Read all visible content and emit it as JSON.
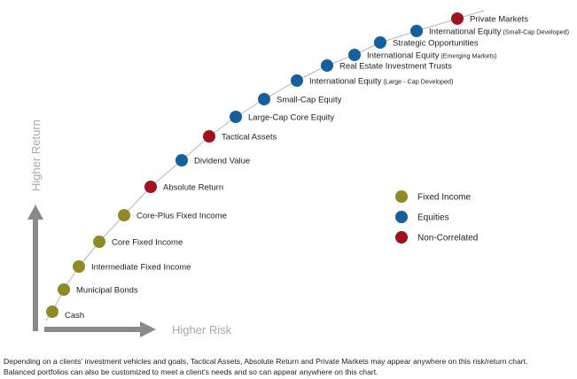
{
  "chart_data": {
    "type": "scatter",
    "xlabel": "Higher Risk",
    "ylabel": "Higher Return",
    "grid": false,
    "legend_placement": "right",
    "categories": [
      {
        "key": "fixed",
        "name": "Fixed Income",
        "color": "#8f8a26"
      },
      {
        "key": "equity",
        "name": "Equities",
        "color": "#14609c"
      },
      {
        "key": "noncorr",
        "name": "Non-Correlated",
        "color": "#a0121e"
      }
    ],
    "points": [
      {
        "label": "Cash",
        "sub": "",
        "category": "fixed",
        "risk": 1,
        "ret": 1
      },
      {
        "label": "Municipal Bonds",
        "sub": "",
        "category": "fixed",
        "risk": 2,
        "ret": 2
      },
      {
        "label": "Intermediate Fixed Income",
        "sub": "",
        "category": "fixed",
        "risk": 3,
        "ret": 3
      },
      {
        "label": "Core Fixed Income",
        "sub": "",
        "category": "fixed",
        "risk": 4,
        "ret": 4
      },
      {
        "label": "Core-Plus Fixed Income",
        "sub": "",
        "category": "fixed",
        "risk": 5,
        "ret": 5
      },
      {
        "label": "Absolute Return",
        "sub": "",
        "category": "noncorr",
        "risk": 6,
        "ret": 6
      },
      {
        "label": "Dividend Value",
        "sub": "",
        "category": "equity",
        "risk": 7,
        "ret": 7
      },
      {
        "label": "Tactical Assets",
        "sub": "",
        "category": "noncorr",
        "risk": 8,
        "ret": 8
      },
      {
        "label": "Large-Cap Core Equity",
        "sub": "",
        "category": "equity",
        "risk": 9,
        "ret": 9
      },
      {
        "label": "Small-Cap Equity",
        "sub": "",
        "category": "equity",
        "risk": 10,
        "ret": 10
      },
      {
        "label": "International Equity",
        "sub": "(Large - Cap Developed)",
        "category": "equity",
        "risk": 11,
        "ret": 11
      },
      {
        "label": "Real Estate Investment   Trusts",
        "sub": "",
        "category": "equity",
        "risk": 12,
        "ret": 12
      },
      {
        "label": "International Equity",
        "sub": "(Emerging Markets)",
        "category": "equity",
        "risk": 13,
        "ret": 13
      },
      {
        "label": "Strategic Opportunities",
        "sub": "",
        "category": "equity",
        "risk": 14,
        "ret": 14
      },
      {
        "label": "International Equity",
        "sub": "(Small-Cap Developed)",
        "category": "equity",
        "risk": 15,
        "ret": 15
      },
      {
        "label": "Private  Markets",
        "sub": "",
        "category": "noncorr",
        "risk": 16,
        "ret": 16
      }
    ]
  },
  "footnote": {
    "line1": "Depending on a clients' investment vehicles and goals, Tactical Assets, Absolute Return and Private Markets may appear anywhere on this risk/return chart.",
    "line2": "Balanced portfolios can also be customized to meet a client's needs and so can appear anywhere on this chart."
  }
}
